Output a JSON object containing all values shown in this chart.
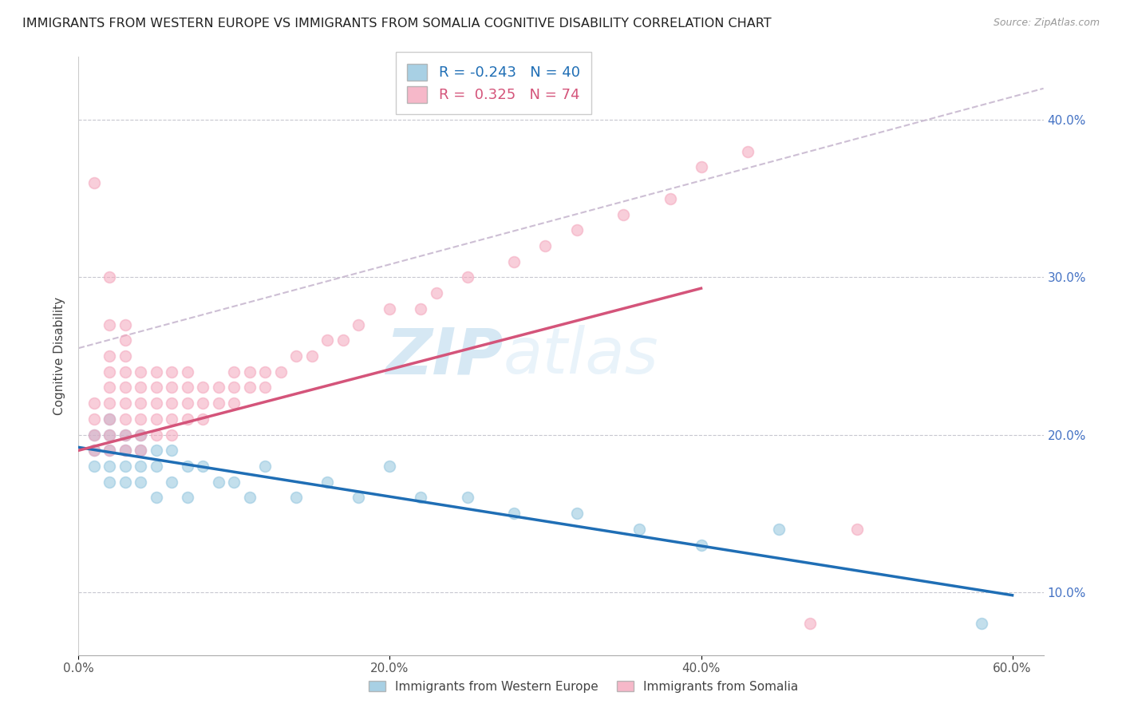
{
  "title": "IMMIGRANTS FROM WESTERN EUROPE VS IMMIGRANTS FROM SOMALIA COGNITIVE DISABILITY CORRELATION CHART",
  "source": "Source: ZipAtlas.com",
  "ylabel": "Cognitive Disability",
  "xlim": [
    0.0,
    0.62
  ],
  "ylim": [
    0.06,
    0.44
  ],
  "ytick_labels": [
    "10.0%",
    "20.0%",
    "30.0%",
    "40.0%"
  ],
  "ytick_values": [
    0.1,
    0.2,
    0.3,
    0.4
  ],
  "xtick_labels": [
    "0.0%",
    "20.0%",
    "40.0%",
    "60.0%"
  ],
  "xtick_values": [
    0.0,
    0.2,
    0.4,
    0.6
  ],
  "western_europe_color": "#92c5de",
  "somalia_color": "#f4a6bc",
  "western_europe_R": -0.243,
  "western_europe_N": 40,
  "somalia_R": 0.325,
  "somalia_N": 74,
  "western_europe_line_color": "#1f6eb5",
  "somalia_line_color": "#d4547a",
  "ref_line_color": "#c8b8d0",
  "background_color": "#ffffff",
  "grid_color": "#c8c8d0",
  "watermark_zip": "ZIP",
  "watermark_atlas": "atlas",
  "legend_label_blue": "Immigrants from Western Europe",
  "legend_label_pink": "Immigrants from Somalia",
  "western_europe_line_x0": 0.0,
  "western_europe_line_y0": 0.192,
  "western_europe_line_x1": 0.6,
  "western_europe_line_y1": 0.098,
  "somalia_line_x0": 0.0,
  "somalia_line_y0": 0.19,
  "somalia_line_x1": 0.4,
  "somalia_line_y1": 0.293,
  "ref_line_x0": 0.0,
  "ref_line_y0": 0.255,
  "ref_line_x1": 0.62,
  "ref_line_y1": 0.42,
  "western_europe_x": [
    0.01,
    0.01,
    0.01,
    0.02,
    0.02,
    0.02,
    0.02,
    0.02,
    0.03,
    0.03,
    0.03,
    0.03,
    0.04,
    0.04,
    0.04,
    0.04,
    0.05,
    0.05,
    0.05,
    0.06,
    0.06,
    0.07,
    0.07,
    0.08,
    0.09,
    0.1,
    0.11,
    0.12,
    0.14,
    0.16,
    0.18,
    0.2,
    0.22,
    0.25,
    0.28,
    0.32,
    0.36,
    0.4,
    0.45,
    0.58
  ],
  "western_europe_y": [
    0.19,
    0.2,
    0.18,
    0.19,
    0.2,
    0.18,
    0.17,
    0.21,
    0.19,
    0.18,
    0.2,
    0.17,
    0.18,
    0.19,
    0.17,
    0.2,
    0.18,
    0.19,
    0.16,
    0.17,
    0.19,
    0.18,
    0.16,
    0.18,
    0.17,
    0.17,
    0.16,
    0.18,
    0.16,
    0.17,
    0.16,
    0.18,
    0.16,
    0.16,
    0.15,
    0.15,
    0.14,
    0.13,
    0.14,
    0.08
  ],
  "somalia_x": [
    0.01,
    0.01,
    0.01,
    0.01,
    0.01,
    0.02,
    0.02,
    0.02,
    0.02,
    0.02,
    0.02,
    0.02,
    0.02,
    0.02,
    0.03,
    0.03,
    0.03,
    0.03,
    0.03,
    0.03,
    0.03,
    0.03,
    0.03,
    0.04,
    0.04,
    0.04,
    0.04,
    0.04,
    0.04,
    0.05,
    0.05,
    0.05,
    0.05,
    0.05,
    0.06,
    0.06,
    0.06,
    0.06,
    0.06,
    0.07,
    0.07,
    0.07,
    0.07,
    0.08,
    0.08,
    0.08,
    0.09,
    0.09,
    0.1,
    0.1,
    0.1,
    0.11,
    0.11,
    0.12,
    0.12,
    0.13,
    0.14,
    0.15,
    0.16,
    0.17,
    0.18,
    0.2,
    0.22,
    0.23,
    0.25,
    0.28,
    0.3,
    0.32,
    0.35,
    0.38,
    0.4,
    0.43,
    0.47,
    0.5
  ],
  "somalia_y": [
    0.19,
    0.2,
    0.21,
    0.22,
    0.36,
    0.19,
    0.2,
    0.21,
    0.22,
    0.23,
    0.24,
    0.25,
    0.27,
    0.3,
    0.19,
    0.2,
    0.21,
    0.22,
    0.23,
    0.24,
    0.25,
    0.26,
    0.27,
    0.19,
    0.2,
    0.21,
    0.22,
    0.23,
    0.24,
    0.2,
    0.21,
    0.22,
    0.23,
    0.24,
    0.2,
    0.21,
    0.22,
    0.23,
    0.24,
    0.21,
    0.22,
    0.23,
    0.24,
    0.21,
    0.22,
    0.23,
    0.22,
    0.23,
    0.22,
    0.23,
    0.24,
    0.23,
    0.24,
    0.23,
    0.24,
    0.24,
    0.25,
    0.25,
    0.26,
    0.26,
    0.27,
    0.28,
    0.28,
    0.29,
    0.3,
    0.31,
    0.32,
    0.33,
    0.34,
    0.35,
    0.37,
    0.38,
    0.08,
    0.14
  ]
}
